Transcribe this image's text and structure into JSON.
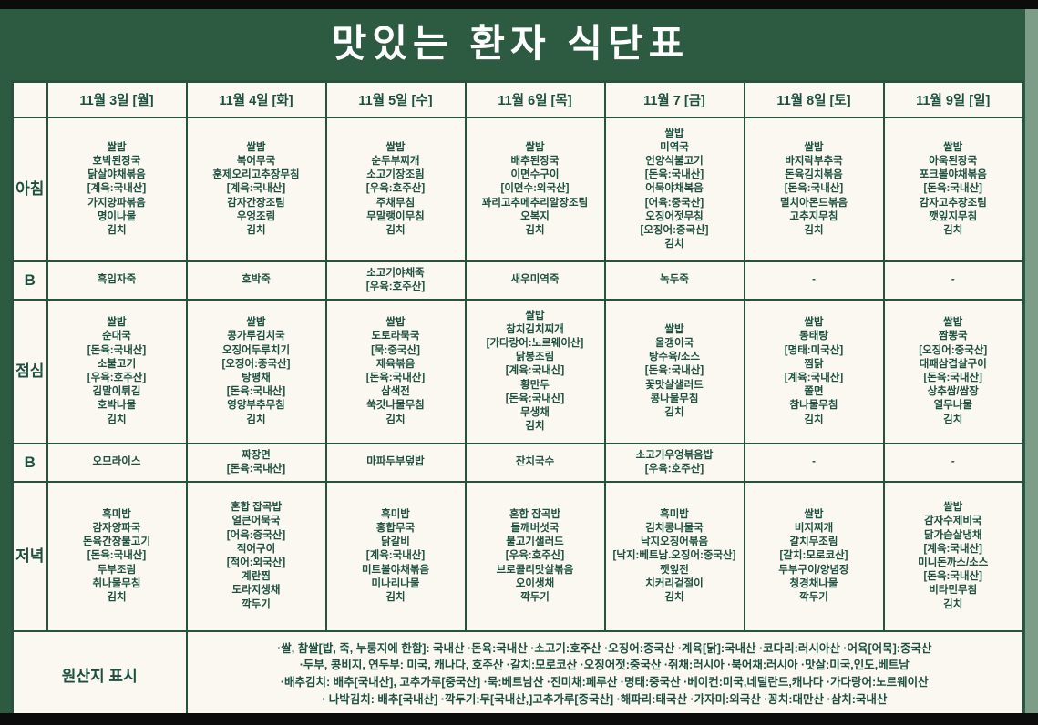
{
  "title": "맛있는 환자 식단표",
  "colors": {
    "background_green": "#2d5b41",
    "cell_background": "#faf8f1",
    "text_green": "#1d5040",
    "border_green": "#26523e",
    "edge_bar_black": "#0c0c0c",
    "right_strip_green": "#7e9d89",
    "title_white": "#ffffff"
  },
  "table": {
    "day_headers": [
      "11월 3일 [월]",
      "11월 4일 [화]",
      "11월 5일 [수]",
      "11월 6일 [목]",
      "11월 7 [금]",
      "11월 8일 [토]",
      "11월 9일 [일]"
    ],
    "rows": [
      {
        "label": "아침",
        "kind": "meal",
        "cells": [
          [
            "쌀밥",
            "호박된장국",
            "닭살야채볶음",
            "[계육:국내산]",
            "가지양파볶음",
            "명이나물",
            "김치"
          ],
          [
            "쌀밥",
            "북어무국",
            "훈제오리고추장무침",
            "[계육:국내산]",
            "감자간장조림",
            "우엉조림",
            "김치"
          ],
          [
            "쌀밥",
            "순두부찌개",
            "소고기장조림",
            "[우육:호주산]",
            "주채무침",
            "무말랭이무침",
            "김치"
          ],
          [
            "쌀밥",
            "배추된장국",
            "이면수구이",
            "[이면수:외국산]",
            "꽈리고추메추리알장조림",
            "오복지",
            "김치"
          ],
          [
            "쌀밥",
            "미역국",
            "언양식불고기",
            "[돈육:국내산]",
            "어묵야채복음",
            "[어육:중국산]",
            "오징어젓무침",
            "[오징어:중국산]",
            "김치"
          ],
          [
            "쌀밥",
            "바지락부추국",
            "돈육김치볶음",
            "[돈육:국내산]",
            "멸치아몬드볶음",
            "고추지무침",
            "김치"
          ],
          [
            "쌀밥",
            "아욱된장국",
            "포크볼야채볶음",
            "[돈육:국내산]",
            "감자고추장조림",
            "깻잎지무침",
            "김치"
          ]
        ]
      },
      {
        "label": "B",
        "kind": "snack",
        "cells": [
          [
            "흑임자죽"
          ],
          [
            "호박죽"
          ],
          [
            "소고기야채죽",
            "[우육:호주산]"
          ],
          [
            "새우미역죽"
          ],
          [
            "녹두죽"
          ],
          [
            "-"
          ],
          [
            "-"
          ]
        ]
      },
      {
        "label": "점심",
        "kind": "meal",
        "cells": [
          [
            "쌀밥",
            "순대국",
            "[돈육:국내산]",
            "소불고기",
            "[우육:호주산]",
            "김말이튀김",
            "호박나물",
            "김치"
          ],
          [
            "쌀밥",
            "콩가루김치국",
            "오징어두루치기",
            "[오징어:중국산]",
            "탕평채",
            "[돈육:국내산]",
            "영양부추무침",
            "김치"
          ],
          [
            "쌀밥",
            "도토라묵국",
            "[묵:중국산]",
            "제육볶음",
            "[돈육:국내산]",
            "삼색전",
            "쑥갓나물무침",
            "김치"
          ],
          [
            "쌀밥",
            "참치김치찌개",
            "[가다랑어:노르웨이산]",
            "닭봉조림",
            "[계육:국내산]",
            "황만두",
            "[돈육:국내산]",
            "무생채",
            "김치"
          ],
          [
            "쌀밥",
            "올갱이국",
            "탕수육/소스",
            "[돈육:국내산]",
            "꽃맛살샐러드",
            "콩나물무침",
            "김치"
          ],
          [
            "쌀밥",
            "동태탕",
            "[명태:미국산]",
            "찜닭",
            "[계육:국내산]",
            "쫄면",
            "참나물무침",
            "김치"
          ],
          [
            "쌀밥",
            "짬뽕국",
            "[오징어:중국산]",
            "대패삼겹살구이",
            "[돈육:국내산]",
            "상추쌈/쌈장",
            "열무나물",
            "김치"
          ]
        ]
      },
      {
        "label": "B",
        "kind": "snack",
        "cells": [
          [
            "오므라이스"
          ],
          [
            "짜장면",
            "[돈육:국내산]"
          ],
          [
            "마파두부덮밥"
          ],
          [
            "잔치국수"
          ],
          [
            "소고기우엉볶음밥",
            "[우육:호주산]"
          ],
          [
            "-"
          ],
          [
            "-"
          ]
        ]
      },
      {
        "label": "저녁",
        "kind": "dinner",
        "cells": [
          [
            "흑미밥",
            "감자양파국",
            "돈육간장불고기",
            "[돈육:국내산]",
            "두부조림",
            "취나물무침",
            "김치"
          ],
          [
            "혼합 잡곡밥",
            "얼큰어묵국",
            "[어육:중국산]",
            "적어구이",
            "[적어:외국산]",
            "계란찜",
            "도라지생채",
            "깍두기"
          ],
          [
            "흑미밥",
            "홍합무국",
            "닭갈비",
            "[계육:국내산]",
            "미트볼야채볶음",
            "미나리나물",
            "김치"
          ],
          [
            "혼합 잡곡밥",
            "들깨버섯국",
            "불고기샐러드",
            "[우육:호주산]",
            "브로콜리맛살볶음",
            "오이생채",
            "깍두기"
          ],
          [
            "흑미밥",
            "김치콩나물국",
            "낙지오징어볶음",
            "[낙지:베트남.오징어:중국산]",
            "깻잎전",
            "치커리겉절이",
            "김치"
          ],
          [
            "쌀밥",
            "비지찌개",
            "갈치무조림",
            "[갈치:모로코산]",
            "두부구이/양념장",
            "청경채나물",
            "깍두기"
          ],
          [
            "쌀밥",
            "감자수제비국",
            "닭가슴살냉채",
            "[계육:국내산]",
            "미니돈까스/소스",
            "[돈육:국내산]",
            "비타민무침",
            "김치"
          ]
        ]
      }
    ],
    "origin": {
      "label": "원산지 표시",
      "lines": [
        "·쌀, 참쌀[밥, 죽, 누룽지에 한함]: 국내산  ·돈육:국내산  ·소고기:호주산  ·오징어:중국산  ·계육[닭]:국내산  ·코다리:러시아산  ·어육[어묵]:중국산",
        "·두부, 콩비지, 연두부: 미국, 캐나다, 호주산 ·갈치:모로코산 ·오징어젓:중국산 ·쥐채:러시아 ·북어채:러시아 ·맛살:미국,인도,베트남",
        "·배추김치: 배추[국내산], 고추가루[중국산]  ·묵:베트남산  ·진미채:페루산  ·명태:중국산  ·베이컨:미국,네덜란드,캐나다  ·가다랑어:노르웨이산",
        "· 나박김치: 배추[국내산] ·깍두기:무[국내산,]고추가루[중국산] ·해파리:태국산 ·가자미:외국산 ·꽁치:대만산 ·삼치:국내산"
      ]
    }
  }
}
